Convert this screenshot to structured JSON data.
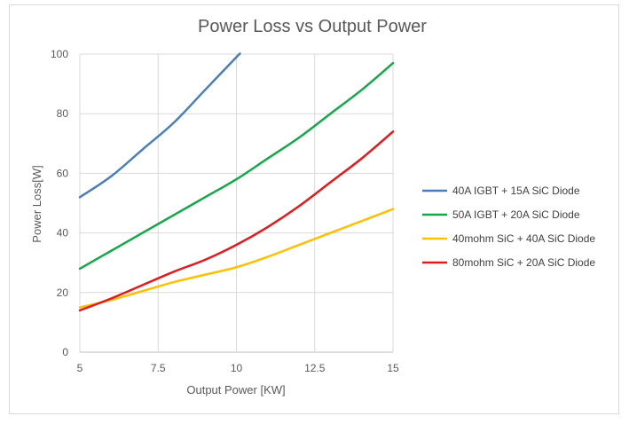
{
  "chart_data": {
    "type": "line",
    "title": "Power Loss vs Output Power",
    "xlabel": "Output Power [KW]",
    "ylabel": "Power Loss[W]",
    "xlim": [
      5,
      15
    ],
    "ylim": [
      0,
      100
    ],
    "x_ticks": [
      5,
      7.5,
      10,
      12.5,
      15
    ],
    "x_tick_labels": [
      "5",
      "7.5",
      "10",
      "12.5",
      "15"
    ],
    "y_ticks": [
      0,
      20,
      40,
      60,
      80,
      100
    ],
    "y_tick_labels": [
      "0",
      "20",
      "40",
      "60",
      "80",
      "100"
    ],
    "grid": true,
    "legend_position": "right",
    "series": [
      {
        "name": "40A IGBT + 15A SiC Diode",
        "color": "#4a7ebb",
        "x": [
          5,
          6,
          7,
          8,
          9,
          10,
          10.1
        ],
        "y": [
          52,
          59,
          68,
          77,
          88,
          99,
          100
        ]
      },
      {
        "name": "50A IGBT + 20A SiC Diode",
        "color": "#14a84a",
        "x": [
          5,
          6,
          7,
          8,
          9,
          10,
          11,
          12,
          13,
          14,
          15
        ],
        "y": [
          28,
          34,
          40,
          46,
          52,
          58,
          65,
          72,
          80,
          88,
          97
        ]
      },
      {
        "name": "40mohm SiC + 40A SiC Diode",
        "color": "#ffc000",
        "x": [
          5,
          6,
          7,
          8,
          9,
          10,
          11,
          12,
          13,
          14,
          15
        ],
        "y": [
          15,
          17.5,
          20.5,
          23.5,
          26,
          28.5,
          32,
          36,
          40,
          44,
          48
        ]
      },
      {
        "name": "80mohm SiC + 20A SiC Diode",
        "color": "#e31a1c",
        "x": [
          5,
          6,
          7,
          8,
          9,
          10,
          11,
          12,
          13,
          14,
          15
        ],
        "y": [
          14,
          18,
          22.5,
          27,
          31,
          36,
          42,
          49,
          57,
          65,
          74
        ]
      }
    ]
  }
}
